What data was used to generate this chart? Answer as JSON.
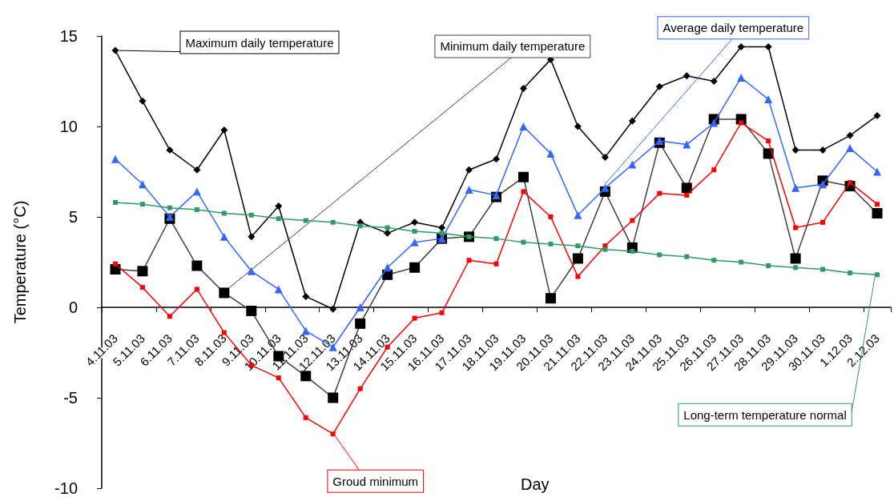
{
  "chart_data": {
    "type": "line",
    "xlabel": "Day",
    "ylabel": "Temperature (°C)",
    "categories": [
      "4.11.03",
      "5.11.03",
      "6.11.03",
      "7.11.03",
      "8.11.03",
      "9.11.03",
      "10.11.03",
      "11.11.03",
      "12.11.03",
      "13.11.03",
      "14.11.03",
      "15.11.03",
      "16.11.03",
      "17.11.03",
      "18.11.03",
      "19.11.03",
      "20.11.03",
      "21.11.03",
      "22.11.03",
      "23.11.03",
      "24.11.03",
      "25.11.03",
      "26.11.03",
      "27.11.03",
      "28.11.03",
      "29.11.03",
      "30.11.03",
      "1.12.03",
      "2.12.03"
    ],
    "ylim": [
      -10,
      15
    ],
    "yticks": [
      -10,
      -5,
      0,
      5,
      10,
      15
    ],
    "grid": false,
    "legend": false,
    "series": [
      {
        "name": "Maximum daily temperature",
        "color": "#000000",
        "marker": "diamond",
        "values": [
          14.2,
          11.4,
          8.7,
          7.6,
          9.8,
          3.9,
          5.6,
          0.6,
          -0.1,
          4.7,
          4.1,
          4.7,
          4.4,
          7.6,
          8.2,
          12.1,
          13.7,
          10.0,
          8.3,
          10.3,
          12.2,
          12.8,
          12.5,
          14.4,
          14.4,
          8.7,
          8.7,
          9.5,
          10.6
        ]
      },
      {
        "name": "Minimum daily temperature",
        "color": "#404040",
        "marker": "square",
        "values": [
          2.1,
          2.0,
          4.9,
          2.3,
          0.8,
          -0.2,
          -2.7,
          -3.8,
          -5.0,
          -0.9,
          1.8,
          2.2,
          3.8,
          3.9,
          6.1,
          7.2,
          0.5,
          2.7,
          6.4,
          3.3,
          9.1,
          6.6,
          10.4,
          10.4,
          8.5,
          2.7,
          7.0,
          6.7,
          5.2
        ]
      },
      {
        "name": "Average daily temperature",
        "color": "#3366ff",
        "marker": "triangle",
        "values": [
          8.2,
          6.8,
          5.0,
          6.4,
          3.9,
          2.0,
          1.0,
          -1.3,
          -2.2,
          0.0,
          2.2,
          3.6,
          3.8,
          6.5,
          6.2,
          10.0,
          8.5,
          5.1,
          6.6,
          7.9,
          9.2,
          9.0,
          10.2,
          12.7,
          11.5,
          6.6,
          6.8,
          8.8,
          7.5
        ]
      },
      {
        "name": "Groud minimum",
        "color": "#ff0000",
        "marker": "square",
        "values": [
          2.4,
          1.1,
          -0.5,
          1.0,
          -1.4,
          -3.2,
          -3.9,
          -6.1,
          -7.0,
          -4.5,
          -2.2,
          -0.6,
          -0.3,
          2.6,
          2.4,
          6.4,
          5.0,
          1.7,
          3.4,
          4.8,
          6.3,
          6.2,
          7.6,
          10.2,
          9.2,
          4.4,
          4.7,
          6.9,
          5.7
        ]
      },
      {
        "name": "Long-term temperature normal",
        "color": "#339966",
        "marker": "square",
        "values": [
          5.8,
          5.7,
          5.5,
          5.4,
          5.2,
          5.1,
          4.9,
          4.8,
          4.7,
          4.5,
          4.4,
          4.2,
          4.1,
          3.9,
          3.8,
          3.6,
          3.5,
          3.4,
          3.2,
          3.1,
          2.9,
          2.8,
          2.6,
          2.5,
          2.3,
          2.2,
          2.1,
          1.9,
          1.8
        ]
      }
    ]
  }
}
